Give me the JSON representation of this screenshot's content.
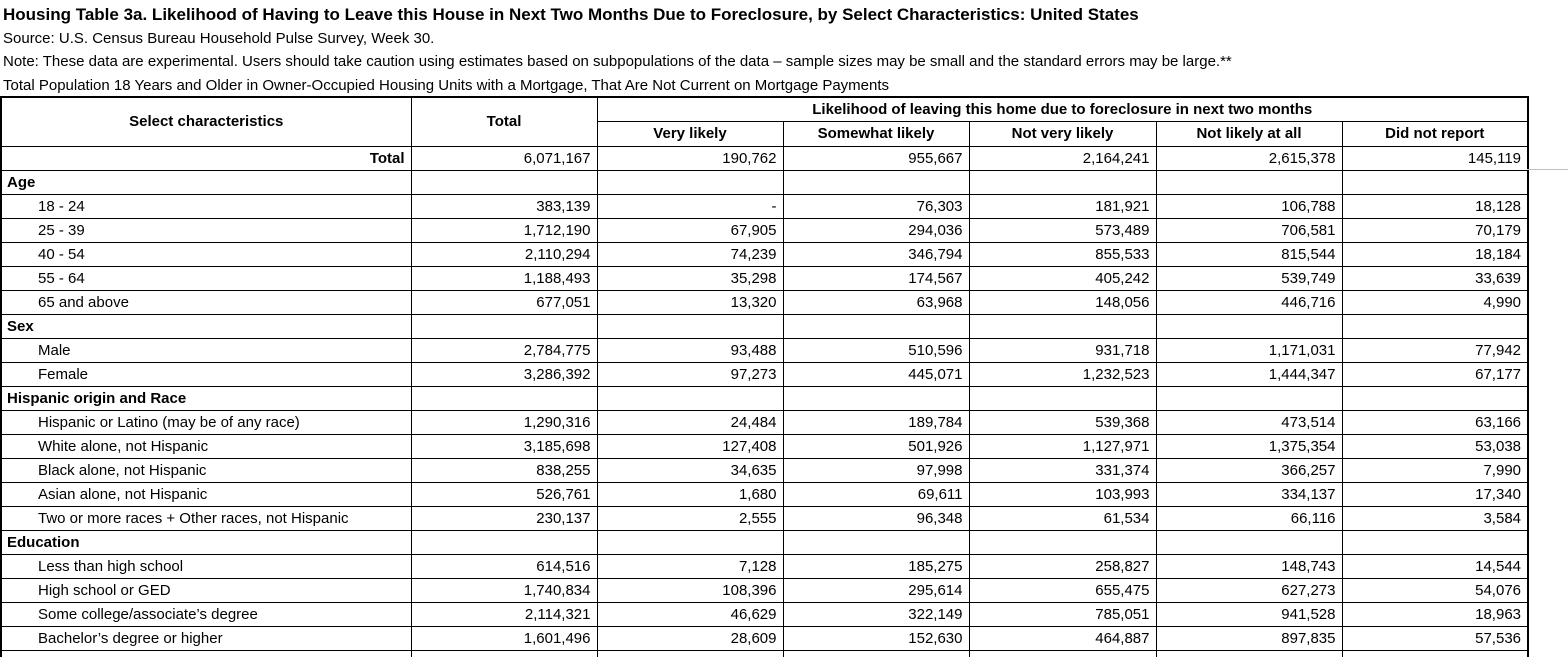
{
  "header": {
    "title": "Housing Table 3a. Likelihood of Having to Leave this House in Next Two Months Due to Foreclosure, by Select Characteristics: United States",
    "source": "Source: U.S. Census Bureau Household Pulse Survey, Week 30.",
    "note": "Note: These data are experimental. Users should take caution using estimates based on subpopulations of the data – sample sizes may be small and the standard errors may be large.**",
    "subtitle": "Total Population 18 Years and Older in Owner-Occupied Housing Units with a Mortgage, That Are Not Current on Mortgage Payments"
  },
  "chart_data": {
    "type": "table",
    "span_header": "Likelihood of leaving this home due to foreclosure in next two months",
    "columns": [
      "Select characteristics",
      "Total",
      "Very likely",
      "Somewhat likely",
      "Not very likely",
      "Not likely at all",
      "Did not report"
    ],
    "rows": [
      {
        "type": "total",
        "label": "Total",
        "values": [
          "6,071,167",
          "190,762",
          "955,667",
          "2,164,241",
          "2,615,378",
          "145,119"
        ]
      },
      {
        "type": "section",
        "label": "Age",
        "values": [
          "",
          "",
          "",
          "",
          "",
          ""
        ]
      },
      {
        "type": "data",
        "label": "18 - 24",
        "values": [
          "383,139",
          "-",
          "76,303",
          "181,921",
          "106,788",
          "18,128"
        ]
      },
      {
        "type": "data",
        "label": "25 - 39",
        "values": [
          "1,712,190",
          "67,905",
          "294,036",
          "573,489",
          "706,581",
          "70,179"
        ]
      },
      {
        "type": "data",
        "label": "40 - 54",
        "values": [
          "2,110,294",
          "74,239",
          "346,794",
          "855,533",
          "815,544",
          "18,184"
        ]
      },
      {
        "type": "data",
        "label": "55 - 64",
        "values": [
          "1,188,493",
          "35,298",
          "174,567",
          "405,242",
          "539,749",
          "33,639"
        ]
      },
      {
        "type": "data",
        "label": "65 and above",
        "values": [
          "677,051",
          "13,320",
          "63,968",
          "148,056",
          "446,716",
          "4,990"
        ]
      },
      {
        "type": "section",
        "label": "Sex",
        "values": [
          "",
          "",
          "",
          "",
          "",
          ""
        ]
      },
      {
        "type": "data",
        "label": "Male",
        "values": [
          "2,784,775",
          "93,488",
          "510,596",
          "931,718",
          "1,171,031",
          "77,942"
        ]
      },
      {
        "type": "data",
        "label": "Female",
        "values": [
          "3,286,392",
          "97,273",
          "445,071",
          "1,232,523",
          "1,444,347",
          "67,177"
        ]
      },
      {
        "type": "section",
        "label": "Hispanic origin and Race",
        "values": [
          "",
          "",
          "",
          "",
          "",
          ""
        ]
      },
      {
        "type": "data",
        "label": "Hispanic or Latino (may be of any race)",
        "values": [
          "1,290,316",
          "24,484",
          "189,784",
          "539,368",
          "473,514",
          "63,166"
        ]
      },
      {
        "type": "data",
        "label": "White alone, not Hispanic",
        "values": [
          "3,185,698",
          "127,408",
          "501,926",
          "1,127,971",
          "1,375,354",
          "53,038"
        ]
      },
      {
        "type": "data",
        "label": "Black alone, not Hispanic",
        "values": [
          "838,255",
          "34,635",
          "97,998",
          "331,374",
          "366,257",
          "7,990"
        ]
      },
      {
        "type": "data",
        "label": "Asian alone, not Hispanic",
        "values": [
          "526,761",
          "1,680",
          "69,611",
          "103,993",
          "334,137",
          "17,340"
        ]
      },
      {
        "type": "data",
        "label": "Two or more races + Other races, not Hispanic",
        "values": [
          "230,137",
          "2,555",
          "96,348",
          "61,534",
          "66,116",
          "3,584"
        ]
      },
      {
        "type": "section",
        "label": "Education",
        "values": [
          "",
          "",
          "",
          "",
          "",
          ""
        ]
      },
      {
        "type": "data",
        "label": "Less than high school",
        "values": [
          "614,516",
          "7,128",
          "185,275",
          "258,827",
          "148,743",
          "14,544"
        ]
      },
      {
        "type": "data",
        "label": "High school or GED",
        "values": [
          "1,740,834",
          "108,396",
          "295,614",
          "655,475",
          "627,273",
          "54,076"
        ]
      },
      {
        "type": "data",
        "label": "Some college/associate’s degree",
        "values": [
          "2,114,321",
          "46,629",
          "322,149",
          "785,051",
          "941,528",
          "18,963"
        ]
      },
      {
        "type": "data",
        "label": "Bachelor’s degree or higher",
        "values": [
          "1,601,496",
          "28,609",
          "152,630",
          "464,887",
          "897,835",
          "57,536"
        ]
      },
      {
        "type": "partial",
        "label": "",
        "values": [
          "",
          "",
          "",
          "",
          "",
          ""
        ]
      }
    ]
  }
}
